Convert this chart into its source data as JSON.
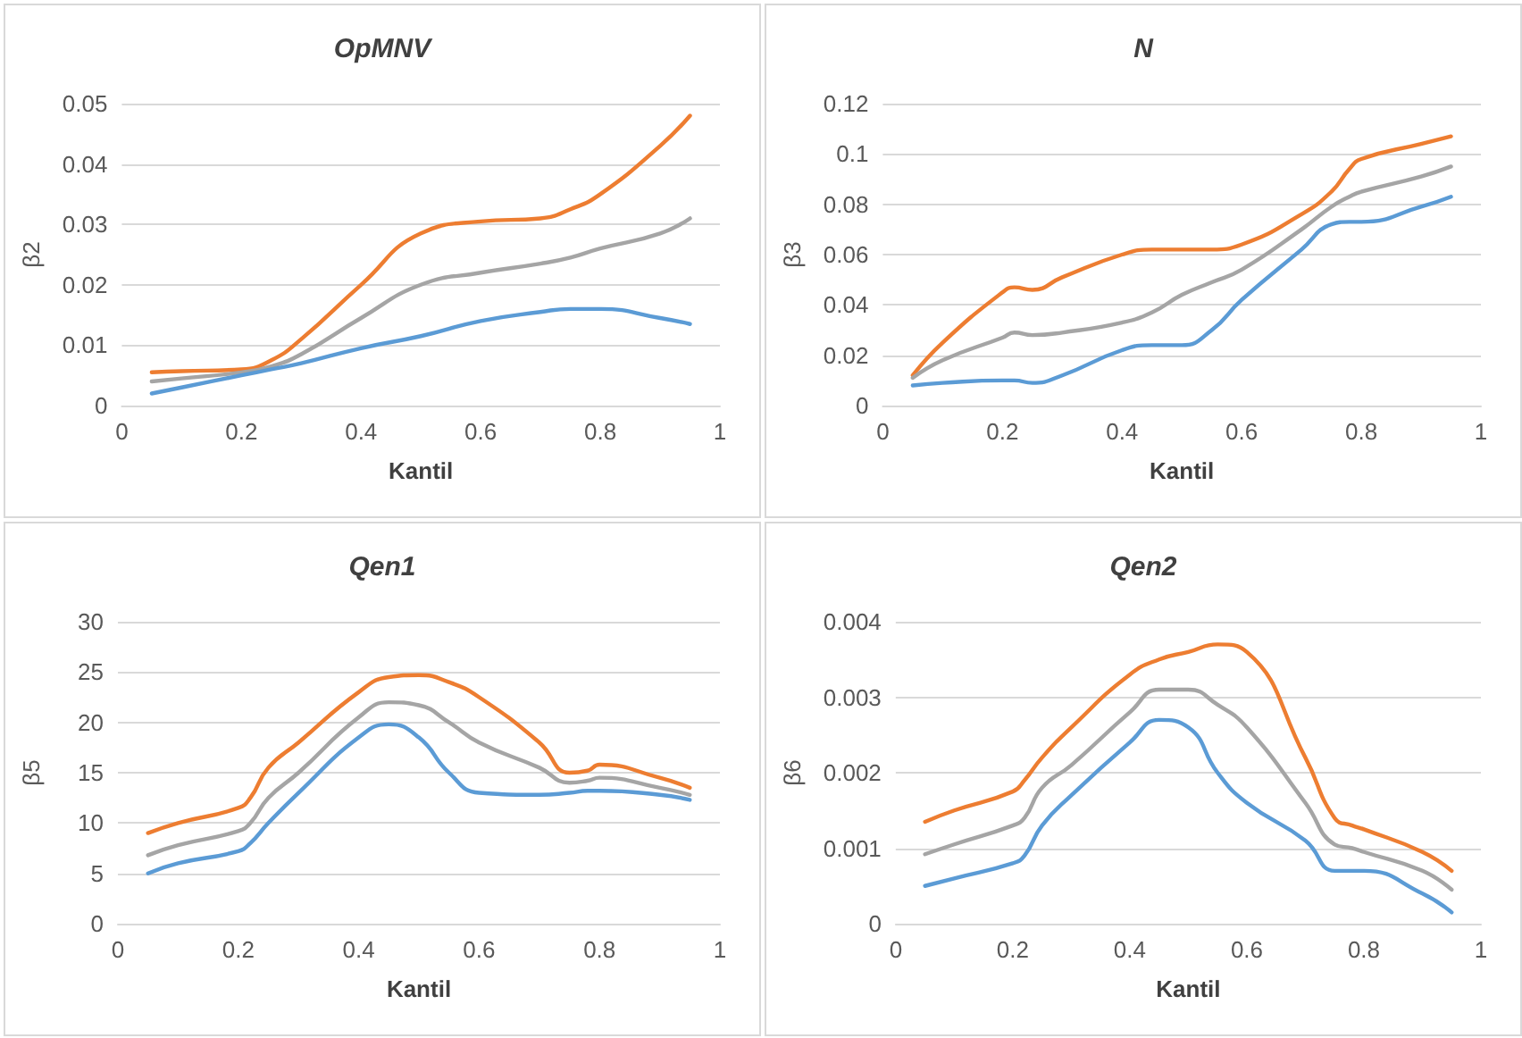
{
  "chart_data": [
    {
      "type": "line",
      "title": "OpMNV",
      "xlabel": "Kantil",
      "ylabel": "β2",
      "x": [
        0.05,
        0.1,
        0.2,
        0.25,
        0.3,
        0.4,
        0.5,
        0.6,
        0.7,
        0.75,
        0.8,
        0.9,
        0.95
      ],
      "xlim": [
        0,
        1
      ],
      "xticks": [
        0,
        0.2,
        0.4,
        0.6,
        0.8,
        1
      ],
      "ylim": [
        0,
        0.05
      ],
      "yticks": [
        0,
        0.01,
        0.02,
        0.03,
        0.04,
        0.05
      ],
      "grid": "y",
      "marker": "none",
      "line_style": "solid",
      "series": [
        {
          "color": "#ed7d31",
          "values": [
            0.0055,
            0.0057,
            0.006,
            0.0075,
            0.011,
            0.02,
            0.0285,
            0.0305,
            0.031,
            0.0325,
            0.035,
            0.043,
            0.048
          ]
        },
        {
          "color": "#a5a5a5",
          "values": [
            0.004,
            0.0045,
            0.0055,
            0.0065,
            0.0085,
            0.0145,
            0.02,
            0.022,
            0.0235,
            0.0245,
            0.026,
            0.0285,
            0.031
          ]
        },
        {
          "color": "#5b9bd5",
          "values": [
            0.002,
            0.003,
            0.005,
            0.006,
            0.007,
            0.0095,
            0.0115,
            0.014,
            0.0155,
            0.016,
            0.016,
            0.0145,
            0.0135
          ]
        }
      ]
    },
    {
      "type": "line",
      "title": "N",
      "xlabel": "Kantil",
      "ylabel": "β3",
      "x": [
        0.05,
        0.1,
        0.2,
        0.22,
        0.25,
        0.3,
        0.4,
        0.45,
        0.5,
        0.55,
        0.6,
        0.7,
        0.75,
        0.78,
        0.8,
        0.9,
        0.95
      ],
      "xlim": [
        0,
        1
      ],
      "xticks": [
        0,
        0.2,
        0.4,
        0.6,
        0.8,
        1
      ],
      "ylim": [
        0,
        0.12
      ],
      "yticks": [
        0,
        0.02,
        0.04,
        0.06,
        0.08,
        0.1,
        0.12
      ],
      "grid": "y",
      "marker": "none",
      "line_style": "solid",
      "series": [
        {
          "color": "#ed7d31",
          "values": [
            0.012,
            0.025,
            0.045,
            0.047,
            0.046,
            0.051,
            0.06,
            0.062,
            0.062,
            0.062,
            0.064,
            0.076,
            0.085,
            0.094,
            0.098,
            0.104,
            0.107
          ]
        },
        {
          "color": "#a5a5a5",
          "values": [
            0.011,
            0.018,
            0.027,
            0.029,
            0.028,
            0.029,
            0.033,
            0.037,
            0.044,
            0.049,
            0.054,
            0.07,
            0.079,
            0.083,
            0.085,
            0.091,
            0.095
          ]
        },
        {
          "color": "#5b9bd5",
          "values": [
            0.008,
            0.009,
            0.01,
            0.01,
            0.009,
            0.012,
            0.022,
            0.024,
            0.024,
            0.03,
            0.042,
            0.062,
            0.072,
            0.073,
            0.073,
            0.079,
            0.083
          ]
        }
      ]
    },
    {
      "type": "line",
      "title": "Qen1",
      "xlabel": "Kantil",
      "ylabel": "β5",
      "x": [
        0.05,
        0.1,
        0.2,
        0.22,
        0.25,
        0.3,
        0.4,
        0.45,
        0.5,
        0.55,
        0.6,
        0.7,
        0.75,
        0.78,
        0.8,
        0.9,
        0.95
      ],
      "xlim": [
        0,
        1
      ],
      "xticks": [
        0,
        0.2,
        0.4,
        0.6,
        0.8,
        1
      ],
      "ylim": [
        0,
        30
      ],
      "yticks": [
        0,
        5,
        10,
        15,
        20,
        25,
        30
      ],
      "grid": "y",
      "marker": "none",
      "line_style": "solid",
      "series": [
        {
          "color": "#ed7d31",
          "values": [
            9,
            10,
            11.5,
            12.5,
            15.5,
            18,
            23,
            24.5,
            24.7,
            24,
            22.5,
            18,
            15,
            15.2,
            15.8,
            14.5,
            13.5
          ]
        },
        {
          "color": "#a5a5a5",
          "values": [
            6.8,
            7.8,
            9.2,
            10,
            12.5,
            15,
            20.5,
            22,
            21.7,
            20,
            18,
            15.5,
            14,
            14.2,
            14.5,
            13.5,
            12.8
          ]
        },
        {
          "color": "#5b9bd5",
          "values": [
            5,
            6,
            7.2,
            8,
            10,
            13,
            18.5,
            19.8,
            18.5,
            15,
            13,
            12.8,
            13,
            13.2,
            13.2,
            12.8,
            12.3
          ]
        }
      ]
    },
    {
      "type": "line",
      "title": "Qen2",
      "xlabel": "Kantil",
      "ylabel": "β6",
      "x": [
        0.05,
        0.1,
        0.2,
        0.22,
        0.25,
        0.3,
        0.4,
        0.45,
        0.5,
        0.55,
        0.6,
        0.7,
        0.75,
        0.78,
        0.8,
        0.9,
        0.95
      ],
      "xlim": [
        0,
        1
      ],
      "xticks": [
        0,
        0.2,
        0.4,
        0.6,
        0.8,
        1
      ],
      "ylim": [
        0,
        0.004
      ],
      "yticks": [
        0,
        0.001,
        0.002,
        0.003,
        0.004
      ],
      "grid": "y",
      "marker": "none",
      "line_style": "solid",
      "series": [
        {
          "color": "#ed7d31",
          "values": [
            0.00135,
            0.0015,
            0.00175,
            0.0019,
            0.0022,
            0.0026,
            0.0033,
            0.0035,
            0.0036,
            0.0037,
            0.0036,
            0.0022,
            0.0014,
            0.0013,
            0.00125,
            0.00095,
            0.0007
          ]
        },
        {
          "color": "#a5a5a5",
          "values": [
            0.00092,
            0.00105,
            0.0013,
            0.0014,
            0.0018,
            0.0021,
            0.0028,
            0.0031,
            0.0031,
            0.0029,
            0.0026,
            0.0016,
            0.00105,
            0.001,
            0.00095,
            0.0007,
            0.00045
          ]
        },
        {
          "color": "#5b9bd5",
          "values": [
            0.0005,
            0.0006,
            0.0008,
            0.0009,
            0.0013,
            0.0017,
            0.0024,
            0.0027,
            0.0026,
            0.002,
            0.0016,
            0.0011,
            0.0007,
            0.0007,
            0.0007,
            0.0004,
            0.00015
          ]
        }
      ]
    }
  ]
}
